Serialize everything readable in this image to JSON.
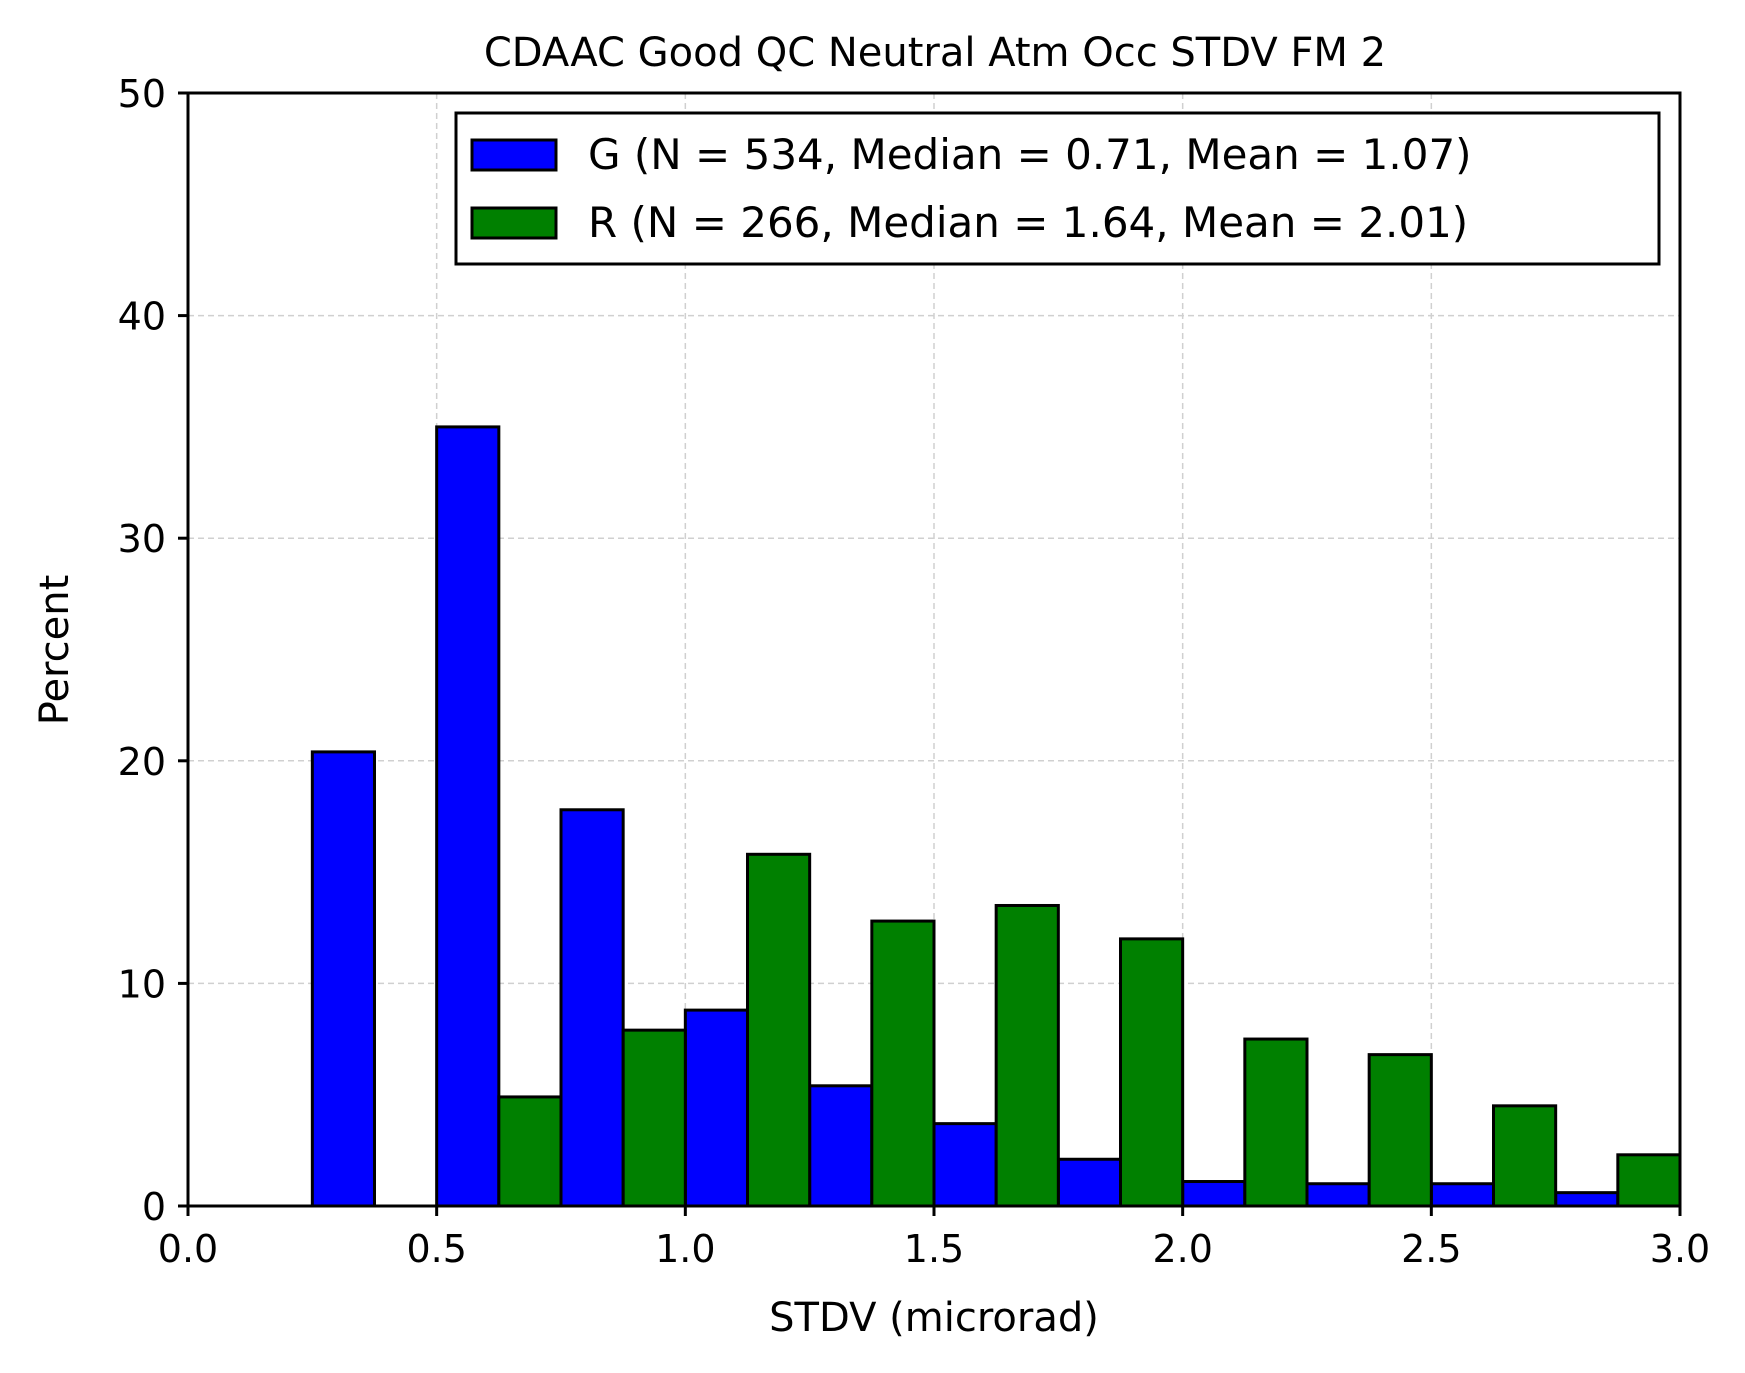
{
  "chart_data": {
    "type": "bar",
    "title": "CDAAC Good QC Neutral Atm Occ STDV FM 2",
    "xlabel": "STDV (microrad)",
    "ylabel": "Percent",
    "xlim": [
      0.0,
      3.0
    ],
    "ylim": [
      0,
      50
    ],
    "xticks": [
      "0.0",
      "0.5",
      "1.0",
      "1.5",
      "2.0",
      "2.5",
      "3.0"
    ],
    "yticks": [
      "0",
      "10",
      "20",
      "30",
      "40",
      "50"
    ],
    "grid": true,
    "legend_position": "top-right",
    "bin_edges": [
      0.0,
      0.25,
      0.5,
      0.75,
      1.0,
      1.25,
      1.5,
      1.75,
      2.0,
      2.25,
      2.5,
      2.75,
      3.0
    ],
    "series": [
      {
        "name": "G (N = 534, Median = 0.71, Mean = 1.07)",
        "color": "#0000ff",
        "values": [
          0,
          20.4,
          35.0,
          17.8,
          8.8,
          5.4,
          3.7,
          2.1,
          1.1,
          1.0,
          1.0,
          0.6
        ]
      },
      {
        "name": "R (N = 266, Median = 1.64, Mean = 2.01)",
        "color": "#008000",
        "values": [
          0,
          0,
          4.9,
          7.9,
          15.8,
          12.8,
          13.5,
          12.0,
          7.5,
          6.8,
          4.5,
          2.3
        ]
      }
    ]
  }
}
